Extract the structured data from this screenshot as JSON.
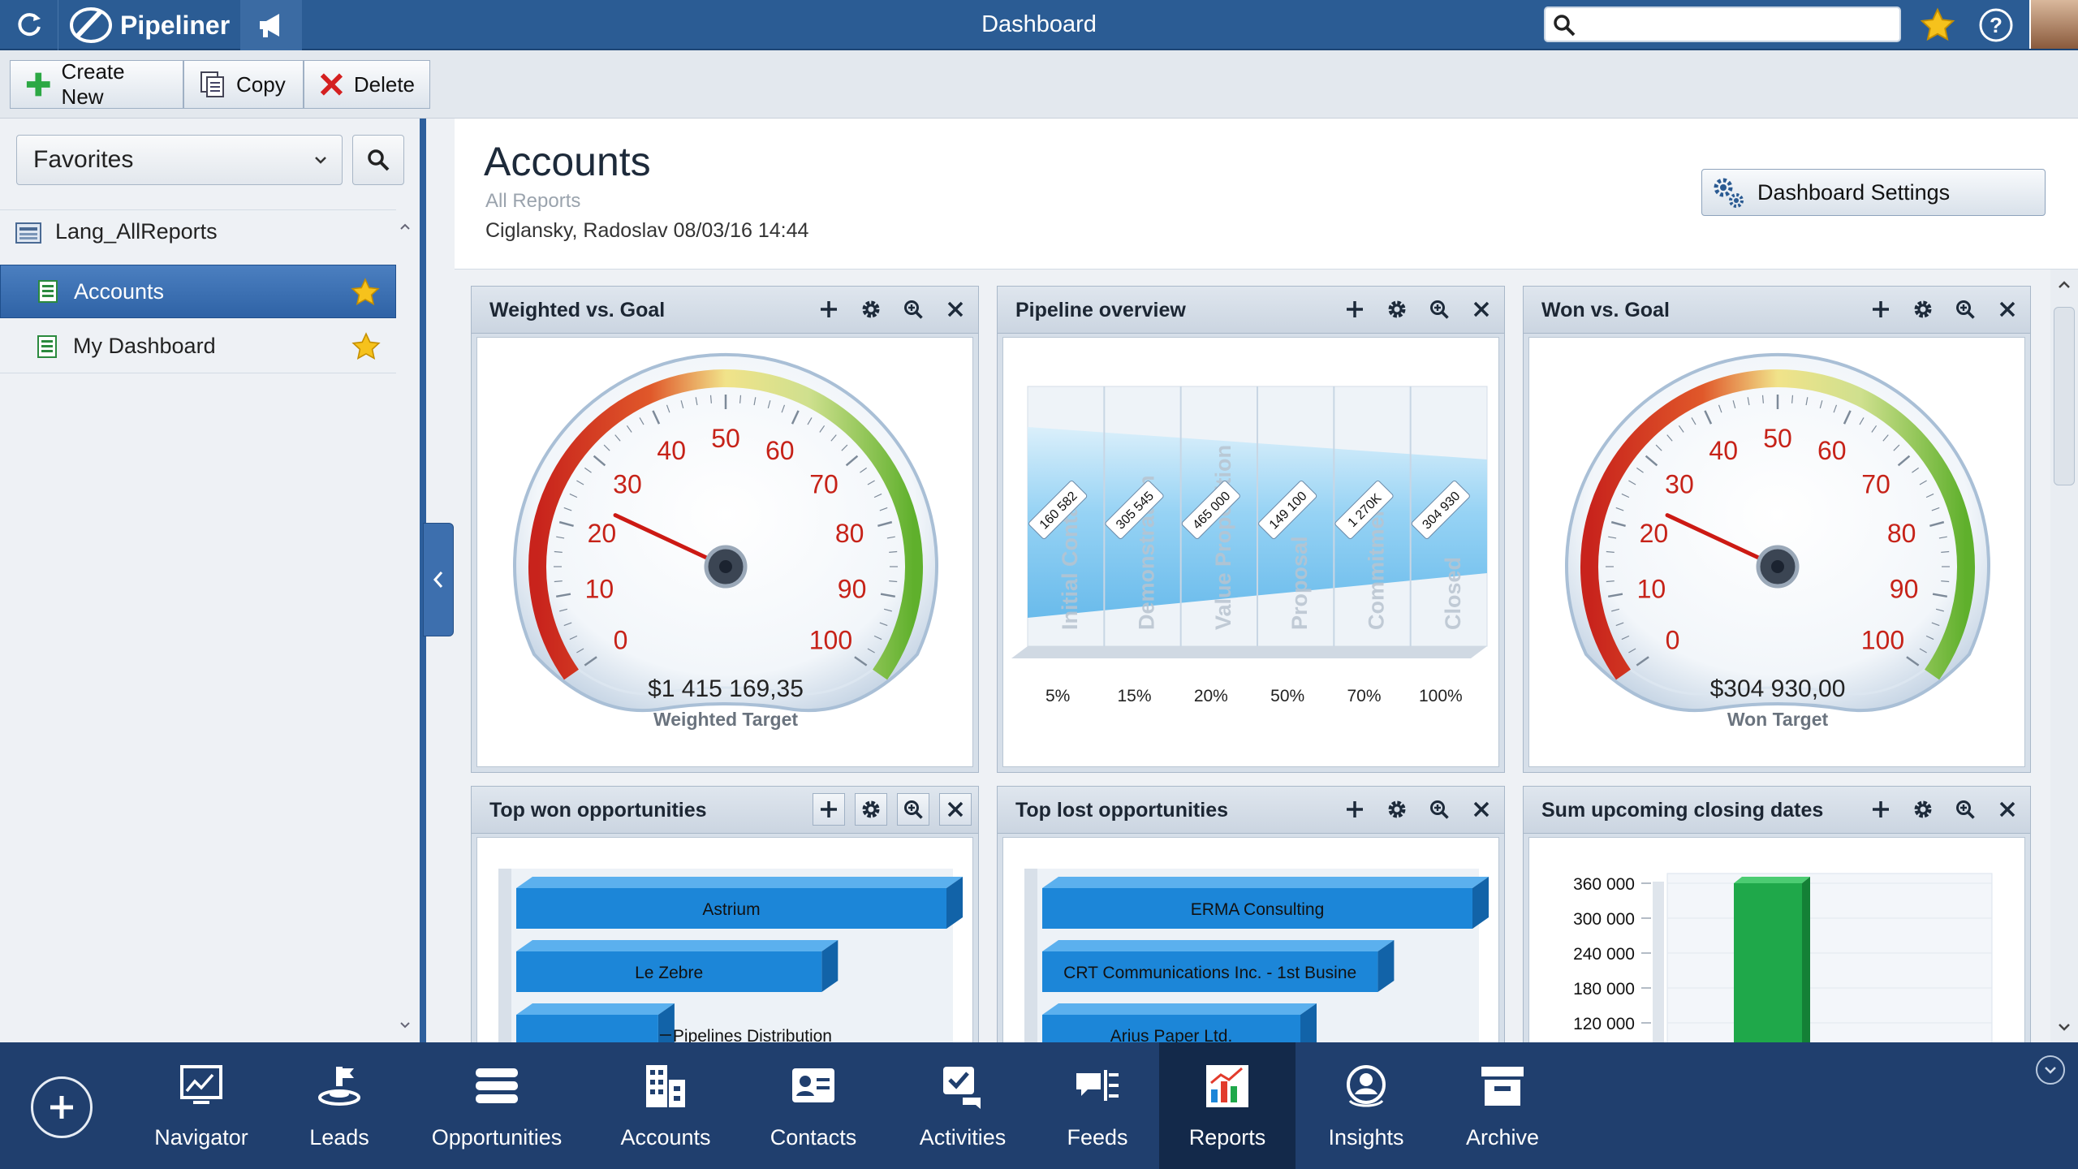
{
  "app": {
    "name": "Pipeliner",
    "title": "Dashboard"
  },
  "search": {
    "placeholder": "",
    "value": ""
  },
  "toolbar": {
    "create_label": "Create New",
    "copy_label": "Copy",
    "delete_label": "Delete"
  },
  "sidebar": {
    "favorites_label": "Favorites",
    "root_label": "Lang_AllReports",
    "items": [
      {
        "label": "Accounts",
        "selected": true,
        "favorite": true
      },
      {
        "label": "My Dashboard",
        "selected": false,
        "favorite": true
      }
    ]
  },
  "header": {
    "title": "Accounts",
    "subtitle": "All Reports",
    "meta": "Ciglansky, Radoslav 08/03/16 14:44",
    "settings_label": "Dashboard Settings"
  },
  "panels": {
    "weighted": {
      "title": "Weighted vs. Goal",
      "value_text": "$1 415 169,35",
      "caption": "Weighted Target",
      "gauge_ticks": [
        "0",
        "10",
        "20",
        "30",
        "40",
        "50",
        "60",
        "70",
        "80",
        "90",
        "100"
      ],
      "needle_value": 24
    },
    "pipeline": {
      "title": "Pipeline overview",
      "chart_data": {
        "type": "bar",
        "categories": [
          "Initial Contact",
          "Demonstration",
          "Value Proposition",
          "Proposal",
          "Commitment",
          "Closed"
        ],
        "value_labels": [
          "160 582",
          "305 545",
          "465 000",
          "149 100",
          "1 270K",
          "304 930"
        ],
        "probabilities": [
          "5%",
          "15%",
          "20%",
          "50%",
          "70%",
          "100%"
        ]
      }
    },
    "won": {
      "title": "Won vs. Goal",
      "value_text": "$304 930,00",
      "caption": "Won Target",
      "gauge_ticks": [
        "0",
        "10",
        "20",
        "30",
        "40",
        "50",
        "60",
        "70",
        "80",
        "90",
        "100"
      ],
      "needle_value": 24
    },
    "top_won": {
      "title": "Top won opportunities",
      "bars": [
        {
          "label": "Astrium",
          "value": 1.0
        },
        {
          "label": "Le Zebre",
          "value": 0.71
        },
        {
          "label": "Pipelines Distribution",
          "value": 0.33
        }
      ]
    },
    "top_lost": {
      "title": "Top lost opportunities",
      "bars": [
        {
          "label": "ERMA Consulting",
          "value": 1.0
        },
        {
          "label": "CRT Communications Inc. - 1st Busine",
          "value": 0.78
        },
        {
          "label": "Arius Paper Ltd.",
          "value": 0.6
        }
      ]
    },
    "upcoming": {
      "title": "Sum upcoming closing dates",
      "chart_data": {
        "type": "bar",
        "y_ticks": [
          "360 000",
          "300 000",
          "240 000",
          "180 000",
          "120 000"
        ],
        "ylim": [
          0,
          360000
        ],
        "values": [
          360000
        ],
        "color": "#1fa84a"
      }
    }
  },
  "nav": [
    {
      "label": "Navigator",
      "icon": "navigator-icon"
    },
    {
      "label": "Leads",
      "icon": "leads-icon"
    },
    {
      "label": "Opportunities",
      "icon": "opportunities-icon"
    },
    {
      "label": "Accounts",
      "icon": "accounts-icon"
    },
    {
      "label": "Contacts",
      "icon": "contacts-icon"
    },
    {
      "label": "Activities",
      "icon": "activities-icon"
    },
    {
      "label": "Feeds",
      "icon": "feeds-icon"
    },
    {
      "label": "Reports",
      "icon": "reports-icon",
      "active": true
    },
    {
      "label": "Insights",
      "icon": "insights-icon"
    },
    {
      "label": "Archive",
      "icon": "archive-icon"
    }
  ],
  "colors": {
    "brand": "#2b5c94",
    "bar_blue": "#1c86d8",
    "bottom_bar": "#203f6e",
    "won_green": "#1fa84a"
  }
}
